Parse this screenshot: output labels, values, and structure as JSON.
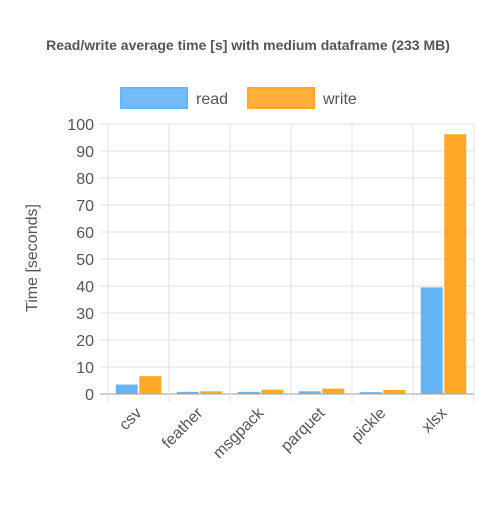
{
  "chart_data": {
    "type": "bar",
    "title": "Read/write average time [s] with medium dataframe (233 MB)",
    "xlabel": "",
    "ylabel": "Time [seconds]",
    "categories": [
      "csv",
      "feather",
      "msgpack",
      "parquet",
      "pickle",
      "xlsx"
    ],
    "series": [
      {
        "name": "read",
        "color": "#64b5f6",
        "values": [
          3.5,
          0.8,
          0.8,
          1.0,
          0.7,
          39.5
        ]
      },
      {
        "name": "write",
        "color": "#ffa726",
        "values": [
          6.6,
          1.0,
          1.6,
          2.0,
          1.5,
          96.2
        ]
      }
    ],
    "ylim": [
      0,
      100
    ],
    "yticks": [
      0,
      10,
      20,
      30,
      40,
      50,
      60,
      70,
      80,
      90,
      100
    ],
    "grid": true,
    "legend": "top"
  }
}
